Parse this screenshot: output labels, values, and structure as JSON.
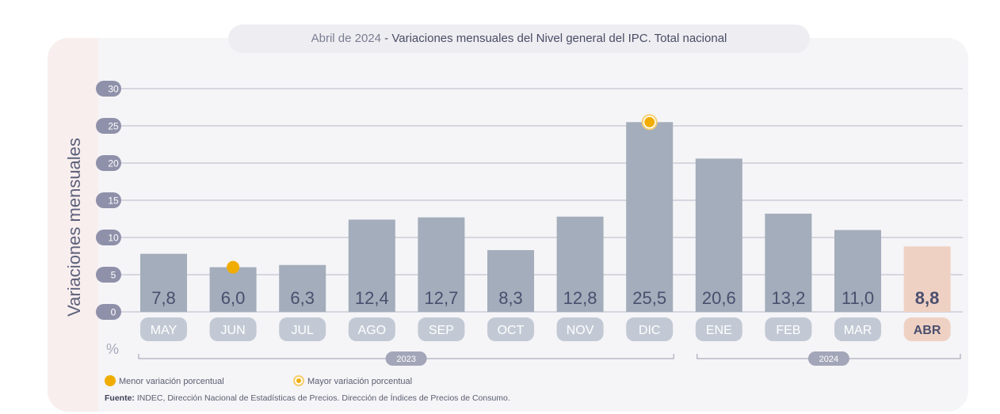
{
  "title_prefix": "Abril de 2024",
  "title_sep": " - ",
  "title_main": "Variaciones mensuales del Nivel general del IPC. Total nacional",
  "y_axis_label": "Variaciones mensuales",
  "y_unit": "%",
  "legend": {
    "min_label": "Menor variación porcentual",
    "max_label": "Mayor variación porcentual"
  },
  "source": {
    "label": "Fuente:",
    "text": " INDEC, Dirección Nacional de Estadísticas de Precios. Dirección de Índices de Precios de Consumo."
  },
  "colors": {
    "bar": "#a3adbb",
    "bar_highlight": "#efd1c3",
    "month_label_bg": "#c2c9d4",
    "value_text": "#4a4f6e",
    "marker": "#f0ad00",
    "gridline": "#b7b9c8",
    "tick_bubble": "#8f91aa"
  },
  "chart_data": {
    "type": "bar",
    "categories": [
      "MAY",
      "JUN",
      "JUL",
      "AGO",
      "SEP",
      "OCT",
      "NOV",
      "DIC",
      "ENE",
      "FEB",
      "MAR",
      "ABR"
    ],
    "values": [
      7.8,
      6.0,
      6.3,
      12.4,
      12.7,
      8.3,
      12.8,
      25.5,
      20.6,
      13.2,
      11.0,
      8.8
    ],
    "value_labels": [
      "7,8",
      "6,0",
      "6,3",
      "12,4",
      "12,7",
      "8,3",
      "12,8",
      "25,5",
      "20,6",
      "13,2",
      "11,0",
      "8,8"
    ],
    "highlighted_category": "ABR",
    "min_variation_category": "JUN",
    "max_variation_category": "DIC",
    "ylim": [
      0,
      30
    ],
    "yticks": [
      0,
      5,
      10,
      15,
      20,
      25,
      30
    ],
    "groups": [
      {
        "label": "2023",
        "from": "MAY",
        "to": "DIC"
      },
      {
        "label": "2024",
        "from": "ENE",
        "to": "ABR"
      }
    ],
    "grid": true
  }
}
